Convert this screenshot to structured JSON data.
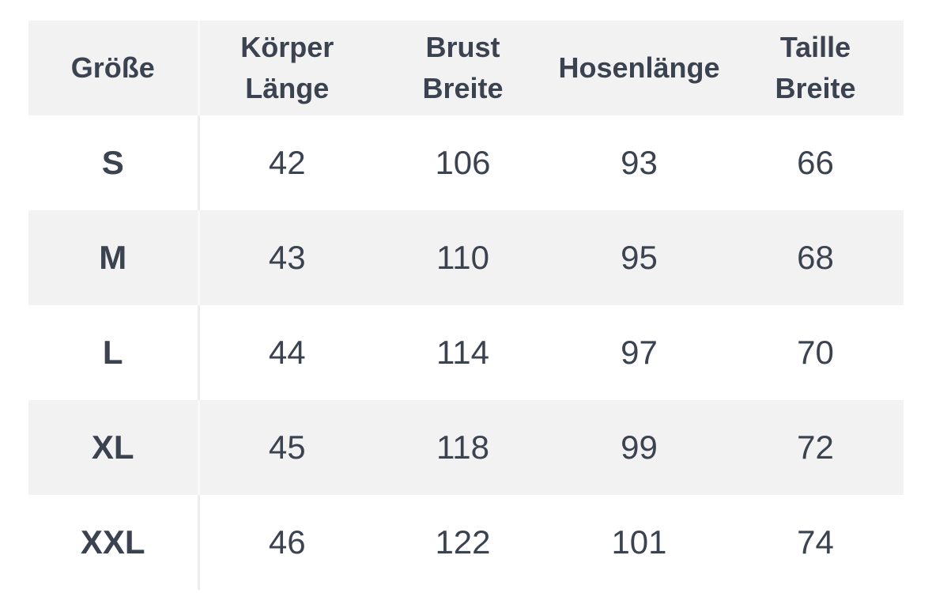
{
  "chart_data": {
    "type": "table",
    "columns": [
      {
        "label": "Größe",
        "lines": [
          "Größe"
        ]
      },
      {
        "label": "Körper Länge",
        "lines": [
          "Körper",
          "Länge"
        ]
      },
      {
        "label": "Brust Breite",
        "lines": [
          "Brust",
          "Breite"
        ]
      },
      {
        "label": "Hosenlänge",
        "lines": [
          "Hosenlänge"
        ]
      },
      {
        "label": "Taille Breite",
        "lines": [
          "Taille",
          "Breite"
        ]
      }
    ],
    "rows": [
      [
        "S",
        "42",
        "106",
        "93",
        "66"
      ],
      [
        "M",
        "43",
        "110",
        "95",
        "68"
      ],
      [
        "L",
        "44",
        "114",
        "97",
        "70"
      ],
      [
        "XL",
        "45",
        "118",
        "99",
        "72"
      ],
      [
        "XXL",
        "46",
        "122",
        "101",
        "74"
      ]
    ],
    "layout_hints": {
      "striped": true,
      "stripe_pattern": "header, rows 2 and 4 shaded"
    }
  },
  "colors": {
    "text": "#3b4250",
    "stripe_bg": "#f2f2f2",
    "row_bg": "#ffffff",
    "divider_on_white": "#ededed",
    "divider_on_gray": "#f9f9f9"
  }
}
